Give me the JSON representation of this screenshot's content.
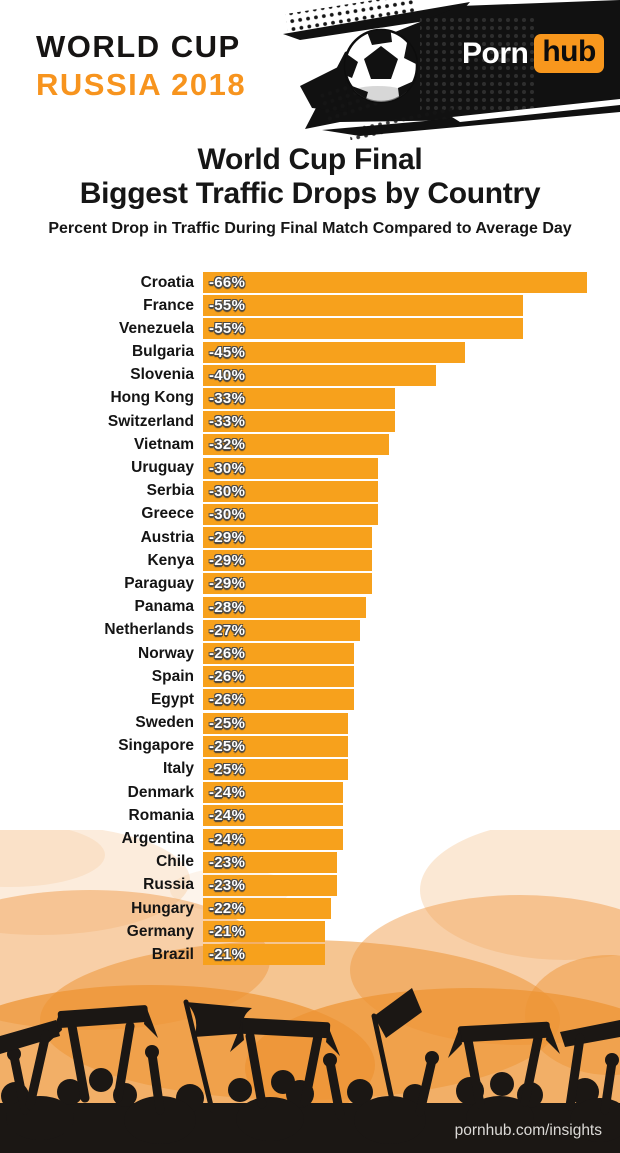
{
  "header": {
    "event_line1": "WORLD CUP",
    "event_line2": "RUSSIA 2018",
    "logo_part1": "Porn",
    "logo_part2": "hub"
  },
  "title": {
    "line1": "World Cup Final",
    "line2": "Biggest Traffic Drops by Country",
    "subtitle": "Percent Drop in Traffic During Final Match Compared to Average Day"
  },
  "chart_data": {
    "type": "bar",
    "orientation": "horizontal",
    "title": "World Cup Final Biggest Traffic Drops by Country",
    "xlabel": "",
    "ylabel": "",
    "xlim": [
      0,
      66
    ],
    "grid": false,
    "legend": false,
    "bar_color": "#F7A11C",
    "categories": [
      "Croatia",
      "France",
      "Venezuela",
      "Bulgaria",
      "Slovenia",
      "Hong Kong",
      "Switzerland",
      "Vietnam",
      "Uruguay",
      "Serbia",
      "Greece",
      "Austria",
      "Kenya",
      "Paraguay",
      "Panama",
      "Netherlands",
      "Norway",
      "Spain",
      "Egypt",
      "Sweden",
      "Singapore",
      "Italy",
      "Denmark",
      "Romania",
      "Argentina",
      "Chile",
      "Russia",
      "Hungary",
      "Germany",
      "Brazil"
    ],
    "values": [
      -66,
      -55,
      -55,
      -45,
      -40,
      -33,
      -33,
      -32,
      -30,
      -30,
      -30,
      -29,
      -29,
      -29,
      -28,
      -27,
      -26,
      -26,
      -26,
      -25,
      -25,
      -25,
      -24,
      -24,
      -24,
      -23,
      -23,
      -22,
      -21,
      -21
    ],
    "labels": [
      "-66%",
      "-55%",
      "-55%",
      "-45%",
      "-40%",
      "-33%",
      "-33%",
      "-32%",
      "-30%",
      "-30%",
      "-30%",
      "-29%",
      "-29%",
      "-29%",
      "-28%",
      "-27%",
      "-26%",
      "-26%",
      "-26%",
      "-25%",
      "-25%",
      "-25%",
      "-24%",
      "-24%",
      "-24%",
      "-23%",
      "-23%",
      "-22%",
      "-21%",
      "-21%"
    ]
  },
  "footer": {
    "link": "pornhub.com/insights"
  },
  "colors": {
    "bar_orange": "#F7A11C",
    "brand_orange": "#F8971D",
    "russia_orange": "#F7941E",
    "header_black": "#111111",
    "watercolor_orange": "#EF953B"
  }
}
